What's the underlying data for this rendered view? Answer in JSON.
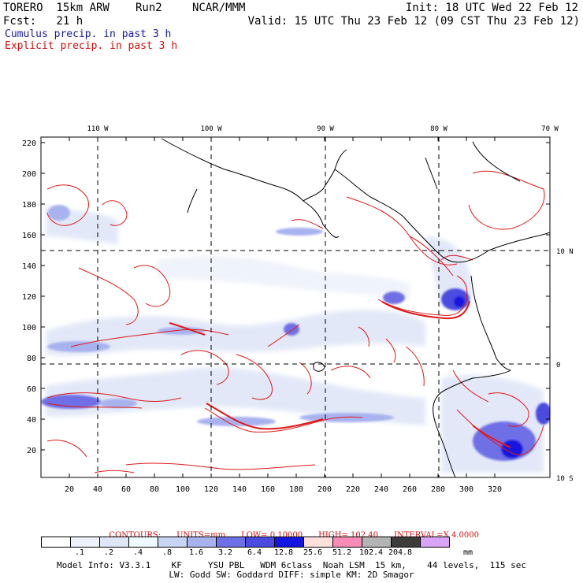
{
  "header": {
    "title": "TORERO  15km ARW",
    "run": "Run2",
    "org": "NCAR/MMM",
    "init": "Init: 18 UTC Wed 22 Feb 12",
    "fcst": "Fcst:   21 h",
    "valid": "Valid: 15 UTC Thu 23 Feb 12 (09 CST Thu 23 Feb 12)",
    "field1": "Cumulus precip. in past 3 h",
    "field2": "Explicit precip. in past 3 h"
  },
  "colors": {
    "cumulus_label": "#1a1aa0",
    "explicit_label": "#d01010",
    "contour": "#e01818",
    "coast": "#000000"
  },
  "map": {
    "top_lon_labels": [
      "110 W",
      "100 W",
      "90 W",
      "80 W",
      "70 W"
    ],
    "right_lat_labels": [
      "10 N",
      "0",
      "10 S"
    ],
    "y_ticks": [
      "220",
      "200",
      "180",
      "160",
      "140",
      "120",
      "100",
      "80",
      "60",
      "40",
      "20"
    ],
    "x_ticks": [
      "20",
      "40",
      "60",
      "80",
      "100",
      "120",
      "140",
      "160",
      "180",
      "200",
      "220",
      "240",
      "260",
      "280",
      "300",
      "320"
    ]
  },
  "contour_info": {
    "prefix": "CONTOURS:",
    "units": "UNITS=mm",
    "low": "LOW= 0.10000",
    "high": "HIGH= 102.40",
    "interval": "INTERVAL=X 4.0000"
  },
  "legend": {
    "colors": [
      "#ffffff",
      "#eef2fb",
      "#dfe6f7",
      "#eefafd",
      "#c7d5f4",
      "#a8b2ef",
      "#6f6fe6",
      "#4b4bdf",
      "#1515e0",
      "#fde0dc",
      "#f88cb6",
      "#b4b4b4",
      "#3c3c3c",
      "#d8a4f6"
    ],
    "labels": [
      ".1",
      ".2",
      ".4",
      ".8",
      "1.6",
      "3.2",
      "6.4",
      "12.8",
      "25.6",
      "51.2",
      "102.4",
      "204.8"
    ],
    "unit": "mm"
  },
  "model_info": {
    "line1": "Model Info: V3.3.1    KF     YSU PBL   WDM 6class  Noah LSM  15 km,    44 levels,  115 sec",
    "line2": "LW: Godd SW: Goddard DIFF: simple KM: 2D Smagor"
  }
}
